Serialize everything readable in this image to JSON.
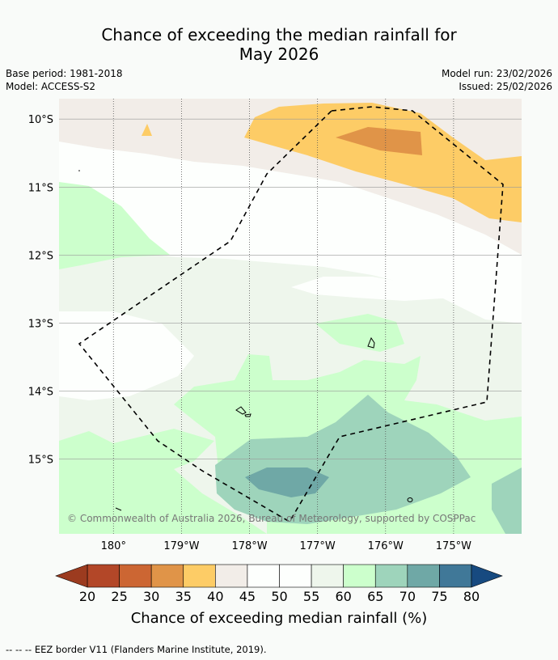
{
  "title_line1": "Chance of exceeding the median rainfall for",
  "title_line2": "May 2026",
  "base_period": "Base period: 1981-2018",
  "model": "Model: ACCESS-S2",
  "model_run": "Model run: 23/02/2026",
  "issued": "Issued: 25/02/2026",
  "copyright": "© Commonwealth of Australia 2026, Bureau of Meteorology, supported by COSPPac",
  "footer": "--  --  -- EEZ border V11 (Flanders Marine Institute, 2019).",
  "chart_data": {
    "type": "heatmap",
    "title": "Chance of exceeding the median rainfall for May 2026",
    "x_axis": {
      "range": [
        -180.8,
        -174.0
      ],
      "ticks": [
        180,
        -179,
        -178,
        -177,
        -176,
        -175
      ],
      "tick_labels": [
        "180°",
        "179°W",
        "178°W",
        "177°W",
        "176°W",
        "175°W"
      ]
    },
    "y_axis": {
      "range": [
        -16.1,
        -9.7
      ],
      "ticks": [
        -10,
        -11,
        -12,
        -13,
        -14,
        -15
      ],
      "tick_labels": [
        "10°S",
        "11°S",
        "12°S",
        "13°S",
        "14°S",
        "15°S"
      ]
    },
    "colorbar": {
      "title": "Chance of exceeding median rainfall (%)",
      "levels": [
        20,
        25,
        30,
        35,
        40,
        45,
        50,
        55,
        60,
        65,
        70,
        75,
        80
      ],
      "level_labels": [
        "20",
        "25",
        "30",
        "35",
        "40",
        "45",
        "50",
        "55",
        "60",
        "65",
        "70",
        "75",
        "80"
      ],
      "colors": [
        "#b34728",
        "#cc6633",
        "#e09448",
        "#fdcc66",
        "#f2ede8",
        "#fdfffd",
        "#fdfffd",
        "#eef6ec",
        "#ccffcc",
        "#9ed4bb",
        "#6fa8a6",
        "#407898"
      ],
      "under_color": "#9c3b1f",
      "over_color": "#174a80"
    },
    "regions": [
      {
        "band": "40-45",
        "description": "northern strip"
      },
      {
        "band": "35-40",
        "description": "north-east band near 10-11°S"
      },
      {
        "band": "30-35",
        "description": "patch near 10.3°S, 176.5°W"
      },
      {
        "band": "60-65",
        "description": "west near 11.5°S and south-west"
      },
      {
        "band": "65-70",
        "description": "around 14.5-15.5°S, 177°W"
      },
      {
        "band": "70-75",
        "description": "patch near 15.3°S, 177.5°W"
      }
    ],
    "overlay": "EEZ border (dashed)"
  }
}
